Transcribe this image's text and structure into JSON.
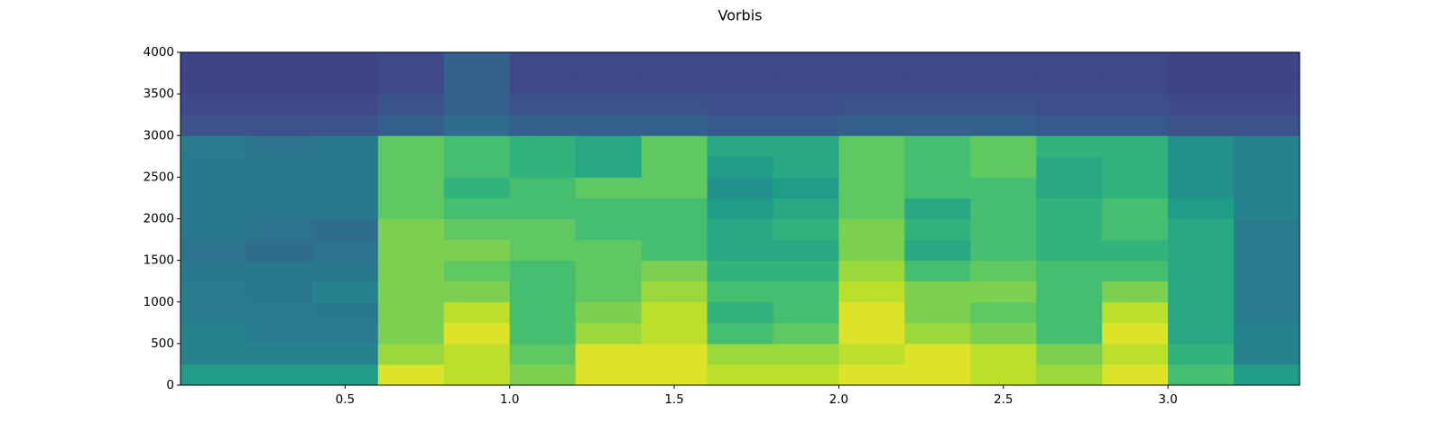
{
  "chart_data": {
    "type": "heatmap",
    "title": "Vorbis",
    "colormap": "viridis",
    "vlim": [
      0,
      1
    ],
    "xlim": [
      0,
      3.4
    ],
    "ylim": [
      0,
      4000
    ],
    "xticks": [
      0.5,
      {
        "value": 1.0,
        "label": "1.0"
      },
      1.5,
      {
        "value": 2.0,
        "label": "2.0"
      },
      2.5,
      {
        "value": 3.0,
        "label": "3.0"
      }
    ],
    "yticks": [
      0,
      500,
      1000,
      1500,
      2000,
      2500,
      3000,
      3500,
      4000
    ],
    "xbins": [
      0,
      0.2,
      0.4,
      0.6,
      0.8,
      1.0,
      1.2,
      1.4,
      1.6,
      1.8,
      2.0,
      2.2,
      2.4,
      2.6,
      2.8,
      3.0,
      3.2,
      3.4
    ],
    "ybins": [
      0,
      250,
      500,
      750,
      1000,
      1250,
      1500,
      1750,
      2000,
      2250,
      2500,
      2750,
      3000,
      3250,
      3500,
      3750,
      4000
    ],
    "values": [
      [
        0.55,
        0.55,
        0.55,
        0.95,
        0.9,
        0.8,
        0.95,
        0.95,
        0.9,
        0.9,
        0.95,
        0.95,
        0.9,
        0.85,
        0.95,
        0.7,
        0.55
      ],
      [
        0.45,
        0.45,
        0.45,
        0.85,
        0.9,
        0.75,
        0.95,
        0.95,
        0.85,
        0.85,
        0.9,
        0.95,
        0.9,
        0.8,
        0.9,
        0.65,
        0.45
      ],
      [
        0.45,
        0.42,
        0.42,
        0.8,
        0.95,
        0.7,
        0.85,
        0.9,
        0.7,
        0.75,
        0.95,
        0.85,
        0.8,
        0.7,
        0.95,
        0.6,
        0.45
      ],
      [
        0.42,
        0.42,
        0.4,
        0.8,
        0.9,
        0.7,
        0.8,
        0.9,
        0.65,
        0.7,
        0.95,
        0.8,
        0.75,
        0.7,
        0.9,
        0.6,
        0.42
      ],
      [
        0.42,
        0.4,
        0.45,
        0.8,
        0.8,
        0.7,
        0.75,
        0.85,
        0.7,
        0.7,
        0.9,
        0.8,
        0.8,
        0.7,
        0.8,
        0.6,
        0.42
      ],
      [
        0.4,
        0.4,
        0.4,
        0.8,
        0.75,
        0.7,
        0.75,
        0.8,
        0.65,
        0.65,
        0.85,
        0.7,
        0.75,
        0.7,
        0.7,
        0.6,
        0.42
      ],
      [
        0.38,
        0.35,
        0.38,
        0.8,
        0.8,
        0.75,
        0.75,
        0.7,
        0.6,
        0.6,
        0.8,
        0.6,
        0.7,
        0.65,
        0.65,
        0.6,
        0.42
      ],
      [
        0.4,
        0.38,
        0.35,
        0.8,
        0.75,
        0.75,
        0.7,
        0.7,
        0.6,
        0.65,
        0.8,
        0.65,
        0.7,
        0.65,
        0.7,
        0.6,
        0.42
      ],
      [
        0.4,
        0.4,
        0.4,
        0.75,
        0.7,
        0.7,
        0.7,
        0.7,
        0.55,
        0.6,
        0.75,
        0.6,
        0.7,
        0.65,
        0.7,
        0.55,
        0.45
      ],
      [
        0.4,
        0.4,
        0.4,
        0.75,
        0.65,
        0.7,
        0.75,
        0.75,
        0.5,
        0.55,
        0.75,
        0.7,
        0.7,
        0.6,
        0.65,
        0.5,
        0.45
      ],
      [
        0.4,
        0.4,
        0.4,
        0.75,
        0.7,
        0.65,
        0.6,
        0.75,
        0.55,
        0.6,
        0.75,
        0.7,
        0.75,
        0.6,
        0.65,
        0.5,
        0.45
      ],
      [
        0.42,
        0.38,
        0.4,
        0.75,
        0.7,
        0.65,
        0.6,
        0.75,
        0.6,
        0.6,
        0.75,
        0.7,
        0.75,
        0.65,
        0.65,
        0.5,
        0.45
      ],
      [
        0.25,
        0.25,
        0.25,
        0.3,
        0.35,
        0.3,
        0.3,
        0.3,
        0.28,
        0.28,
        0.3,
        0.3,
        0.3,
        0.28,
        0.28,
        0.25,
        0.25
      ],
      [
        0.22,
        0.22,
        0.22,
        0.25,
        0.3,
        0.25,
        0.25,
        0.25,
        0.24,
        0.24,
        0.25,
        0.25,
        0.25,
        0.24,
        0.24,
        0.22,
        0.22
      ],
      [
        0.2,
        0.2,
        0.2,
        0.22,
        0.3,
        0.22,
        0.22,
        0.22,
        0.22,
        0.22,
        0.22,
        0.22,
        0.22,
        0.22,
        0.22,
        0.2,
        0.2
      ],
      [
        0.2,
        0.2,
        0.2,
        0.22,
        0.3,
        0.22,
        0.22,
        0.22,
        0.22,
        0.22,
        0.22,
        0.22,
        0.22,
        0.22,
        0.22,
        0.2,
        0.2
      ]
    ]
  }
}
